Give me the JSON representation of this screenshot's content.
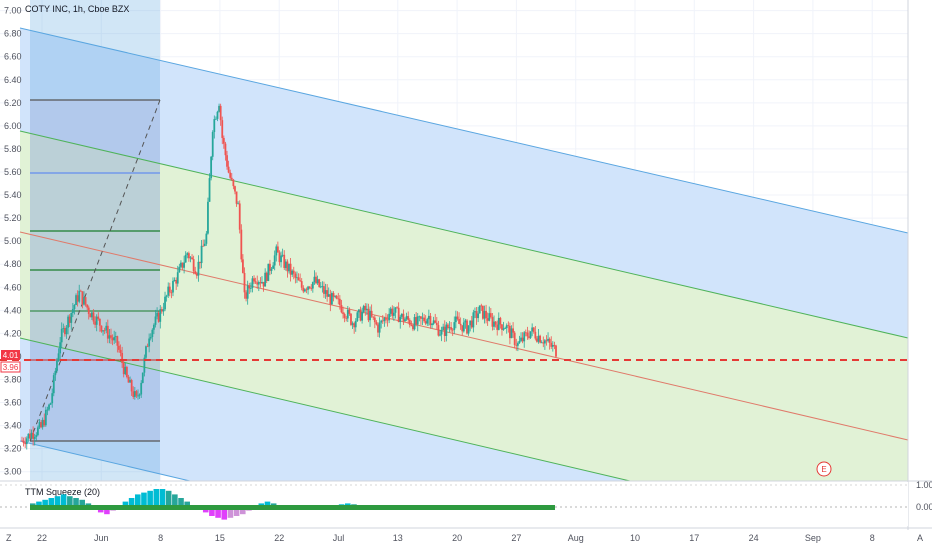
{
  "header": {
    "symbol": "COTY INC, 1h, Cboe BZX"
  },
  "indicator": {
    "name": "TTM Squeeze (20)",
    "ticks": [
      "1.00",
      "0.00"
    ]
  },
  "price_badges": {
    "upper": "4.01",
    "lower": "3.96"
  },
  "earnings_marker": "E",
  "corner_buttons": {
    "left": "Z",
    "right": "A"
  },
  "colors": {
    "blue_fill": "#cfe3fb",
    "green_fill": "#dff1d4",
    "purple_fill": "#ddd5ea",
    "blue_line": "#5aa6e0",
    "green_line": "#4fb35a",
    "median_line": "#e07a6a",
    "dashed_red": "#e53935",
    "badge_red": "#f23645",
    "up": "#26a69a",
    "down": "#ef5350"
  },
  "chart_data": {
    "type": "candlestick",
    "title": "COTY INC, 1h, Cboe BZX",
    "y_ticks": [
      "7.00",
      "6.80",
      "6.60",
      "6.40",
      "6.20",
      "6.00",
      "5.80",
      "5.60",
      "5.40",
      "5.20",
      "5.00",
      "4.80",
      "4.60",
      "4.40",
      "4.20",
      "4.00",
      "3.80",
      "3.60",
      "3.40",
      "3.20",
      "3.00"
    ],
    "ylim": [
      2.98,
      7.04
    ],
    "x_ticks": [
      "22",
      "Jun",
      "8",
      "15",
      "22",
      "Jul",
      "13",
      "20",
      "27",
      "Aug",
      "10",
      "17",
      "24",
      "Sep",
      "8"
    ],
    "horizontal_line": 3.98,
    "price_path": [
      [
        0,
        3.27
      ],
      [
        3,
        3.33
      ],
      [
        6,
        3.38
      ],
      [
        9,
        3.6
      ],
      [
        12,
        4.15
      ],
      [
        15,
        4.35
      ],
      [
        18,
        4.55
      ],
      [
        21,
        4.4
      ],
      [
        24,
        4.3
      ],
      [
        27,
        4.2
      ],
      [
        30,
        4.1
      ],
      [
        33,
        3.8
      ],
      [
        36,
        3.62
      ],
      [
        37,
        3.72
      ],
      [
        40,
        4.2
      ],
      [
        43,
        4.35
      ],
      [
        46,
        4.55
      ],
      [
        49,
        4.7
      ],
      [
        52,
        4.9
      ],
      [
        55,
        4.75
      ],
      [
        58,
        5.05
      ],
      [
        60,
        6.0
      ],
      [
        62,
        6.22
      ],
      [
        63,
        5.9
      ],
      [
        65,
        5.6
      ],
      [
        68,
        5.3
      ],
      [
        70,
        4.5
      ],
      [
        73,
        4.7
      ],
      [
        76,
        4.65
      ],
      [
        80,
        4.9
      ],
      [
        84,
        4.75
      ],
      [
        88,
        4.6
      ],
      [
        92,
        4.65
      ],
      [
        97,
        4.5
      ],
      [
        100,
        4.45
      ],
      [
        104,
        4.3
      ],
      [
        108,
        4.4
      ],
      [
        112,
        4.25
      ],
      [
        116,
        4.4
      ],
      [
        120,
        4.33
      ],
      [
        124,
        4.28
      ],
      [
        128,
        4.35
      ],
      [
        132,
        4.2
      ],
      [
        136,
        4.3
      ],
      [
        140,
        4.25
      ],
      [
        144,
        4.4
      ],
      [
        148,
        4.3
      ],
      [
        152,
        4.27
      ],
      [
        156,
        4.1
      ],
      [
        160,
        4.22
      ],
      [
        164,
        4.15
      ],
      [
        168,
        4.05
      ]
    ],
    "indicator_histogram": [
      0.2,
      0.3,
      0.4,
      0.5,
      0.6,
      0.7,
      0.6,
      0.5,
      0.4,
      0.2,
      -0.1,
      -0.3,
      -0.4,
      -0.2,
      0.1,
      0.3,
      0.5,
      0.7,
      0.8,
      0.9,
      1.0,
      1.0,
      0.9,
      0.7,
      0.5,
      0.3,
      0.1,
      -0.1,
      -0.3,
      -0.5,
      -0.6,
      -0.7,
      -0.6,
      -0.5,
      -0.4,
      -0.2,
      0.1,
      0.2,
      0.3,
      0.2,
      0.1,
      -0.1,
      -0.05,
      0.05,
      0.1,
      0.08,
      -0.05,
      -0.1,
      -0.05,
      0.05,
      0.15,
      0.2,
      0.15,
      0.1,
      0.05,
      -0.05,
      -0.1,
      -0.05,
      0.05,
      0.1,
      0.08,
      0.06,
      -0.04,
      -0.08,
      -0.06,
      0.04,
      0.08,
      0.1,
      0.06,
      -0.03,
      -0.06,
      -0.04,
      0.03,
      0.05,
      0.07,
      0.05,
      -0.02,
      -0.05,
      -0.08,
      -0.1,
      -0.12,
      -0.1,
      -0.06,
      0.03,
      0.05
    ]
  }
}
